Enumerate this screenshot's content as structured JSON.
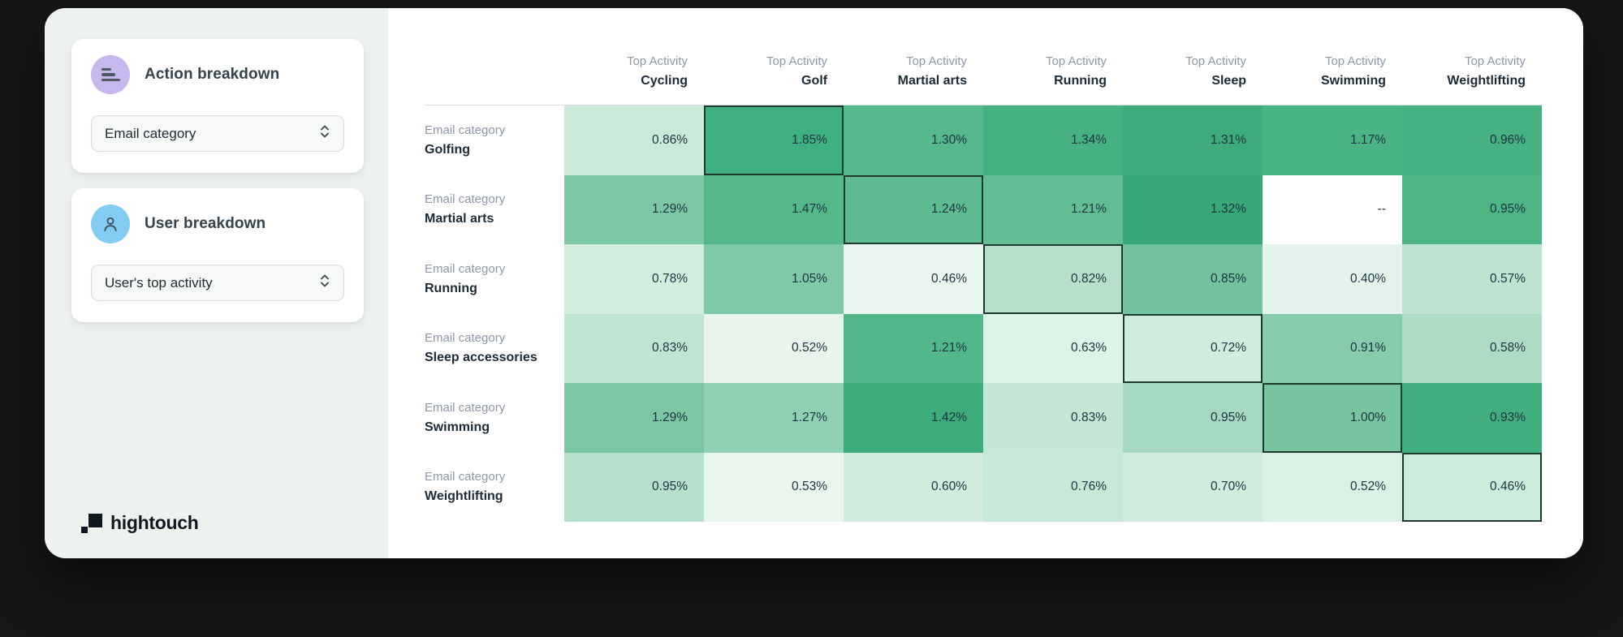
{
  "sidebar": {
    "action_card": {
      "title": "Action breakdown",
      "icon": "breakdown-bars-icon",
      "icon_bg": "#c7b8ee",
      "select_value": "Email category"
    },
    "user_card": {
      "title": "User breakdown",
      "icon": "person-icon",
      "icon_bg": "#82cdf1",
      "select_value": "User's top activity"
    },
    "logo_text": "hightouch"
  },
  "heatmap": {
    "col_header_prefix": "Top Activity",
    "row_header_prefix": "Email category",
    "columns": [
      "Cycling",
      "Golf",
      "Martial arts",
      "Running",
      "Sleep",
      "Swimming",
      "Weightlifting"
    ],
    "rows": [
      {
        "label": "Golfing",
        "cells": [
          {
            "t": "0.86%",
            "bg": "#cbe9d8",
            "hl": false
          },
          {
            "t": "1.85%",
            "bg": "#3fb080",
            "hl": true
          },
          {
            "t": "1.30%",
            "bg": "#55b98b",
            "hl": false
          },
          {
            "t": "1.34%",
            "bg": "#45b17f",
            "hl": false
          },
          {
            "t": "1.31%",
            "bg": "#3eac7a",
            "hl": false
          },
          {
            "t": "1.17%",
            "bg": "#4ab483",
            "hl": false
          },
          {
            "t": "0.96%",
            "bg": "#46b281",
            "hl": false
          }
        ]
      },
      {
        "label": "Martial arts",
        "cells": [
          {
            "t": "1.29%",
            "bg": "#7cc8a4",
            "hl": false
          },
          {
            "t": "1.47%",
            "bg": "#55b888",
            "hl": false
          },
          {
            "t": "1.24%",
            "bg": "#5dbb8f",
            "hl": true
          },
          {
            "t": "1.21%",
            "bg": "#63bd92",
            "hl": false
          },
          {
            "t": "1.32%",
            "bg": "#37a976",
            "hl": false
          },
          {
            "t": "--",
            "bg": "#ffffff",
            "hl": false
          },
          {
            "t": "0.95%",
            "bg": "#4db483",
            "hl": false
          }
        ]
      },
      {
        "label": "Running",
        "cells": [
          {
            "t": "0.78%",
            "bg": "#d2edde",
            "hl": false
          },
          {
            "t": "1.05%",
            "bg": "#7ec9a6",
            "hl": false
          },
          {
            "t": "0.46%",
            "bg": "#eaf7f0",
            "hl": false
          },
          {
            "t": "0.82%",
            "bg": "#b7e0cb",
            "hl": true
          },
          {
            "t": "0.85%",
            "bg": "#70c39c",
            "hl": false
          },
          {
            "t": "0.40%",
            "bg": "#e4f4ec",
            "hl": false
          },
          {
            "t": "0.57%",
            "bg": "#bde4d1",
            "hl": false
          }
        ]
      },
      {
        "label": "Sleep accessories",
        "cells": [
          {
            "t": "0.83%",
            "bg": "#c1e5d3",
            "hl": false
          },
          {
            "t": "0.52%",
            "bg": "#e7f5ed",
            "hl": false
          },
          {
            "t": "1.21%",
            "bg": "#52b789",
            "hl": false
          },
          {
            "t": "0.63%",
            "bg": "#def2e7",
            "hl": false
          },
          {
            "t": "0.72%",
            "bg": "#cfecdc",
            "hl": true
          },
          {
            "t": "0.91%",
            "bg": "#86ccab",
            "hl": false
          },
          {
            "t": "0.58%",
            "bg": "#addcc5",
            "hl": false
          }
        ]
      },
      {
        "label": "Swimming",
        "cells": [
          {
            "t": "1.29%",
            "bg": "#7bc7a2",
            "hl": false
          },
          {
            "t": "1.27%",
            "bg": "#91d1b3",
            "hl": false
          },
          {
            "t": "1.42%",
            "bg": "#3cac79",
            "hl": false
          },
          {
            "t": "0.83%",
            "bg": "#c5e7d5",
            "hl": false
          },
          {
            "t": "0.95%",
            "bg": "#a4d8c0",
            "hl": false
          },
          {
            "t": "1.00%",
            "bg": "#76c59f",
            "hl": true
          },
          {
            "t": "0.93%",
            "bg": "#40ae7d",
            "hl": false
          }
        ]
      },
      {
        "label": "Weightlifting",
        "cells": [
          {
            "t": "0.95%",
            "bg": "#b5e0cb",
            "hl": false
          },
          {
            "t": "0.53%",
            "bg": "#e8f6ee",
            "hl": false
          },
          {
            "t": "0.60%",
            "bg": "#d1ecdd",
            "hl": false
          },
          {
            "t": "0.76%",
            "bg": "#c6e8d6",
            "hl": false
          },
          {
            "t": "0.70%",
            "bg": "#d0ecdd",
            "hl": false
          },
          {
            "t": "0.52%",
            "bg": "#daf0e4",
            "hl": false
          },
          {
            "t": "0.46%",
            "bg": "#cdebdb",
            "hl": true
          }
        ]
      }
    ]
  },
  "chart_data": {
    "type": "heatmap",
    "title": "",
    "x_label_prefix": "Top Activity",
    "y_label_prefix": "Email category",
    "x_categories": [
      "Cycling",
      "Golf",
      "Martial arts",
      "Running",
      "Sleep",
      "Swimming",
      "Weightlifting"
    ],
    "y_categories": [
      "Golfing",
      "Martial arts",
      "Running",
      "Sleep accessories",
      "Swimming",
      "Weightlifting"
    ],
    "values_pct": [
      [
        0.86,
        1.85,
        1.3,
        1.34,
        1.31,
        1.17,
        0.96
      ],
      [
        1.29,
        1.47,
        1.24,
        1.21,
        1.32,
        null,
        0.95
      ],
      [
        0.78,
        1.05,
        0.46,
        0.82,
        0.85,
        0.4,
        0.57
      ],
      [
        0.83,
        0.52,
        1.21,
        0.63,
        0.72,
        0.91,
        0.58
      ],
      [
        1.29,
        1.27,
        1.42,
        0.83,
        0.95,
        1.0,
        0.93
      ],
      [
        0.95,
        0.53,
        0.6,
        0.76,
        0.7,
        0.52,
        0.46
      ]
    ],
    "null_cell": {
      "row": 1,
      "col": 5,
      "display": "--"
    },
    "highlighted_cells": [
      [
        0,
        1
      ],
      [
        1,
        2
      ],
      [
        2,
        3
      ],
      [
        3,
        4
      ],
      [
        4,
        5
      ],
      [
        5,
        6
      ]
    ],
    "color_scale": {
      "low": "#eaf7f0",
      "high": "#37a976"
    },
    "legend_position": "none",
    "grid": false
  }
}
